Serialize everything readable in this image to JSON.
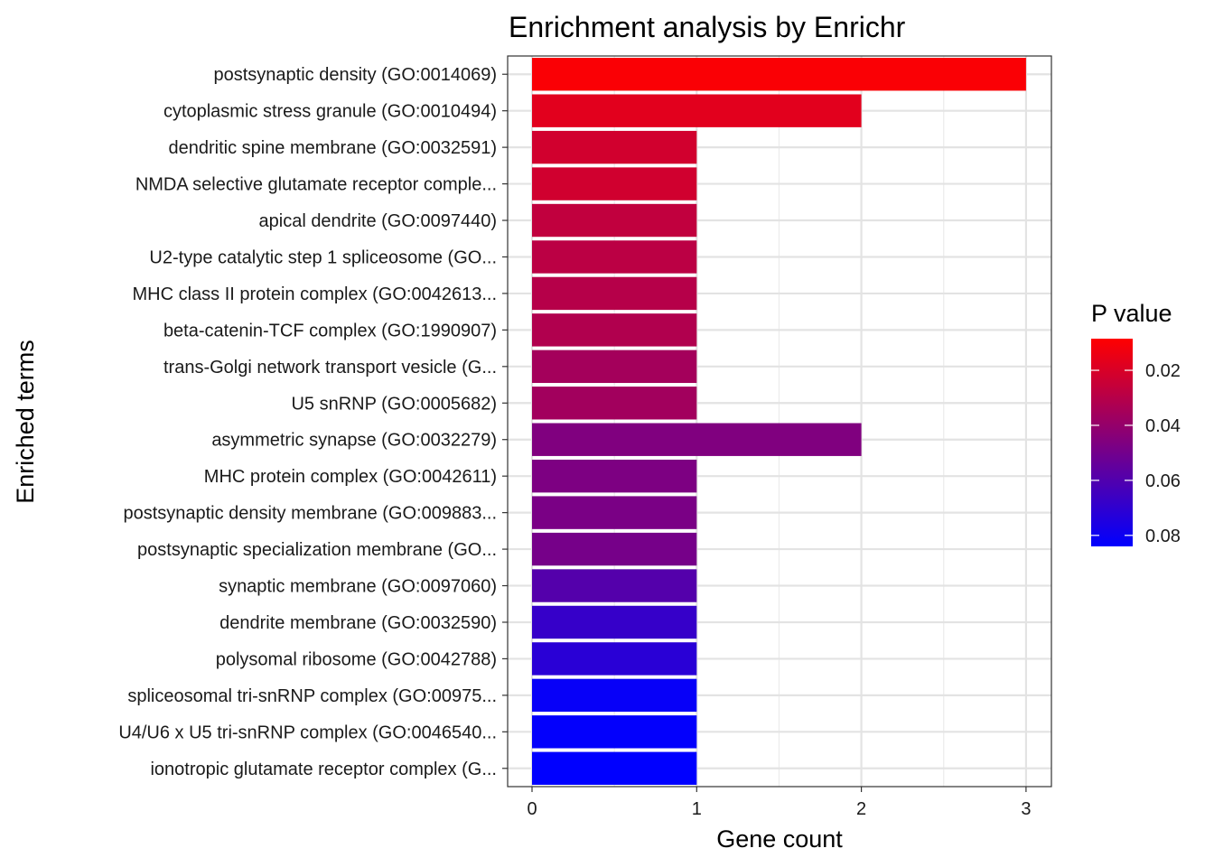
{
  "chart_data": {
    "type": "bar",
    "orientation": "horizontal",
    "title": "Enrichment analysis by Enrichr",
    "xlabel": "Gene count",
    "ylabel": "Enriched terms",
    "xlim": [
      0,
      3.15
    ],
    "x_ticks": [
      "0",
      "1",
      "2",
      "3"
    ],
    "grid": true,
    "categories": [
      "postsynaptic density (GO:0014069)",
      "cytoplasmic stress granule (GO:0010494)",
      "dendritic spine membrane (GO:0032591)",
      "NMDA selective glutamate receptor comple...",
      "apical dendrite (GO:0097440)",
      "U2-type catalytic step 1 spliceosome (GO...",
      "MHC class II protein complex (GO:0042613...",
      "beta-catenin-TCF complex (GO:1990907)",
      "trans-Golgi network transport vesicle (G...",
      "U5 snRNP (GO:0005682)",
      "asymmetric synapse (GO:0032279)",
      "MHC protein complex (GO:0042611)",
      "postsynaptic density membrane (GO:009883...",
      "postsynaptic specialization membrane (GO...",
      "synaptic membrane (GO:0097060)",
      "dendrite membrane (GO:0032590)",
      "polysomal ribosome (GO:0042788)",
      "spliceosomal tri-snRNP complex (GO:00975...",
      "U4/U6 x U5 tri-snRNP complex (GO:0046540...",
      "ionotropic glutamate receptor complex (G..."
    ],
    "values": [
      3,
      2,
      1,
      1,
      1,
      1,
      1,
      1,
      1,
      1,
      2,
      1,
      1,
      1,
      1,
      1,
      1,
      1,
      1,
      1
    ],
    "p_values": [
      0.01,
      0.017,
      0.022,
      0.0225,
      0.027,
      0.0285,
      0.03,
      0.0315,
      0.0355,
      0.036,
      0.046,
      0.047,
      0.048,
      0.049,
      0.059,
      0.068,
      0.072,
      0.082,
      0.083,
      0.084
    ],
    "legend": {
      "title": "P value",
      "position": "right",
      "range": [
        0.0085,
        0.084
      ],
      "ticks": [
        0.02,
        0.04,
        0.06,
        0.08
      ],
      "tick_labels": [
        "0.02",
        "0.04",
        "0.06",
        "0.08"
      ],
      "low_color": "#ff0000",
      "high_color": "#0000ff"
    }
  }
}
